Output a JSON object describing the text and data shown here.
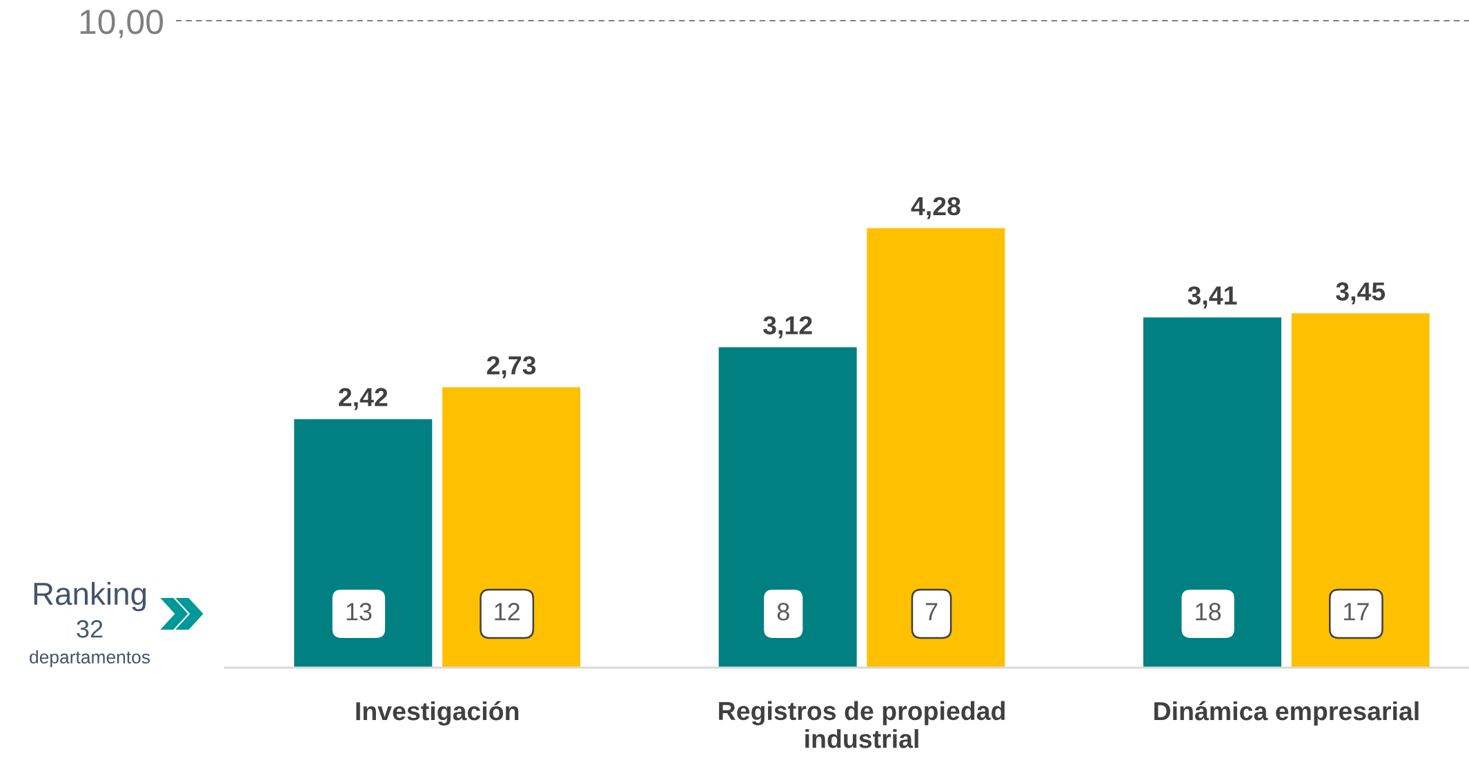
{
  "chart_data": {
    "type": "bar",
    "categories": [
      "Investigación",
      "Registros de propiedad\nindustrial",
      "Dinámica empresarial"
    ],
    "series": [
      {
        "color": "#008080",
        "values": [
          2.42,
          3.12,
          3.41
        ],
        "value_labels": [
          "2,42",
          "3,12",
          "3,41"
        ]
      },
      {
        "color": "#ffc000",
        "values": [
          2.73,
          4.28,
          3.45
        ],
        "value_labels": [
          "2,73",
          "4,28",
          "3,45"
        ]
      }
    ],
    "annotations": [
      "10,00",
      "Ranking",
      "32",
      "departamentos",
      "13",
      "12",
      "8",
      "7",
      "18",
      "17"
    ]
  }
}
